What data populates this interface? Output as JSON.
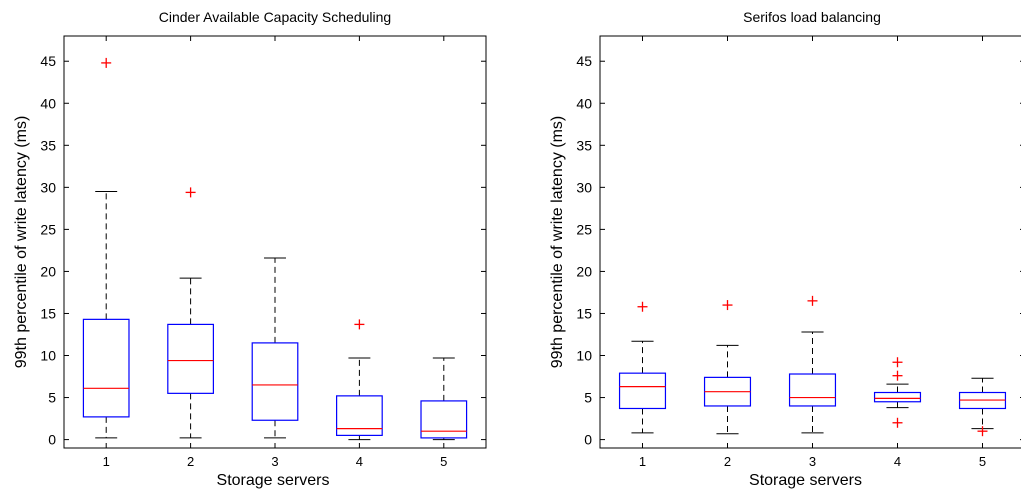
{
  "chart_data": [
    {
      "type": "box",
      "title": "Cinder Available Capacity Scheduling",
      "xlabel": "Storage servers",
      "ylabel": "99th percentile of write latency (ms)",
      "ylim": [
        -1,
        48
      ],
      "yticks": [
        0,
        5,
        10,
        15,
        20,
        25,
        30,
        35,
        40,
        45
      ],
      "categories": [
        "1",
        "2",
        "3",
        "4",
        "5"
      ],
      "boxes": [
        {
          "whisker_low": 0.2,
          "q1": 2.7,
          "median": 6.1,
          "q3": 14.3,
          "whisker_high": 29.5,
          "outliers": [
            44.8
          ]
        },
        {
          "whisker_low": 0.2,
          "q1": 5.5,
          "median": 9.4,
          "q3": 13.7,
          "whisker_high": 19.2,
          "outliers": [
            29.4
          ]
        },
        {
          "whisker_low": 0.2,
          "q1": 2.3,
          "median": 6.5,
          "q3": 11.5,
          "whisker_high": 21.6,
          "outliers": []
        },
        {
          "whisker_low": 0.0,
          "q1": 0.5,
          "median": 1.3,
          "q3": 5.2,
          "whisker_high": 9.7,
          "outliers": [
            13.7
          ]
        },
        {
          "whisker_low": 0.0,
          "q1": 0.2,
          "median": 1.0,
          "q3": 4.6,
          "whisker_high": 9.7,
          "outliers": []
        }
      ]
    },
    {
      "type": "box",
      "title": "Serifos load balancing",
      "xlabel": "Storage servers",
      "ylabel": "99th percentile of write latency (ms)",
      "ylim": [
        -1,
        48
      ],
      "yticks": [
        0,
        5,
        10,
        15,
        20,
        25,
        30,
        35,
        40,
        45
      ],
      "categories": [
        "1",
        "2",
        "3",
        "4",
        "5"
      ],
      "boxes": [
        {
          "whisker_low": 0.8,
          "q1": 3.7,
          "median": 6.3,
          "q3": 7.9,
          "whisker_high": 11.7,
          "outliers": [
            15.8
          ]
        },
        {
          "whisker_low": 0.7,
          "q1": 4.0,
          "median": 5.7,
          "q3": 7.4,
          "whisker_high": 11.2,
          "outliers": [
            16.0
          ]
        },
        {
          "whisker_low": 0.8,
          "q1": 4.0,
          "median": 5.0,
          "q3": 7.8,
          "whisker_high": 12.8,
          "outliers": [
            16.5
          ]
        },
        {
          "whisker_low": 3.8,
          "q1": 4.5,
          "median": 4.9,
          "q3": 5.6,
          "whisker_high": 6.6,
          "outliers": [
            9.2,
            7.6,
            2.0
          ]
        },
        {
          "whisker_low": 1.3,
          "q1": 3.7,
          "median": 4.7,
          "q3": 5.6,
          "whisker_high": 7.3,
          "outliers": [
            1.0
          ]
        }
      ]
    }
  ],
  "colors": {
    "box": "#0000ff",
    "median": "#ff0000",
    "whisker": "#000000",
    "outlier": "#ff0000"
  }
}
